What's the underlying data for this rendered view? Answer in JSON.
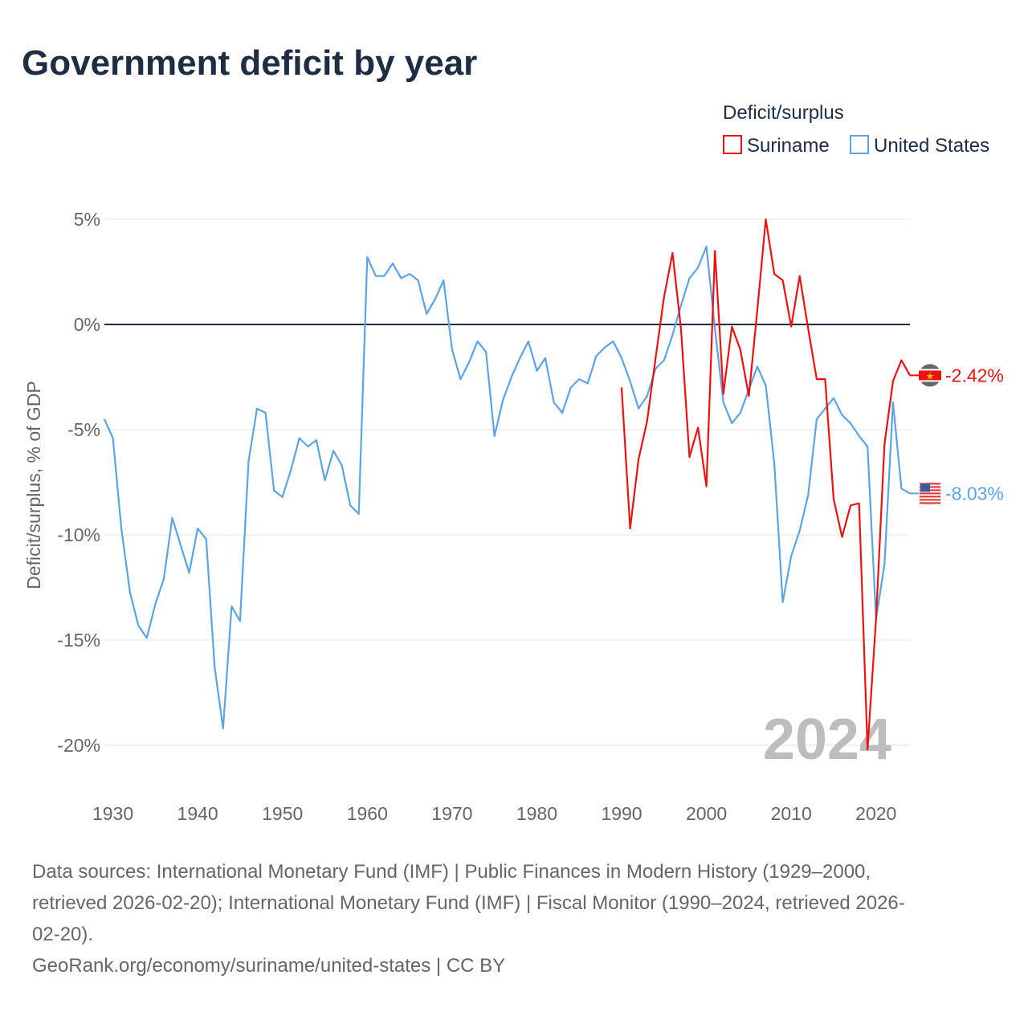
{
  "chart_data": {
    "type": "line",
    "title": "Government deficit by year",
    "xlabel": "",
    "ylabel": "Deficit/surplus, % of GDP",
    "xlim": [
      1929,
      2024
    ],
    "ylim": [
      -20,
      5
    ],
    "x_ticks": [
      1930,
      1940,
      1950,
      1960,
      1970,
      1980,
      1990,
      2000,
      2010,
      2020
    ],
    "y_ticks": [
      5,
      0,
      -5,
      -10,
      -15,
      -20
    ],
    "y_tick_labels": [
      "5%",
      "0%",
      "-5%",
      "-10%",
      "-15%",
      "-20%"
    ],
    "x_tick_labels": [
      "1930",
      "1940",
      "1950",
      "1960",
      "1970",
      "1980",
      "1990",
      "2000",
      "2010",
      "2020"
    ],
    "grid": true,
    "legend_title": "Deficit/surplus",
    "legend_placement": "top-right",
    "year_watermark": "2024",
    "series": [
      {
        "name": "Suriname",
        "color": "#ee1111",
        "start_year": 1990,
        "end_label": "-2.42%",
        "values": [
          -3.0,
          -9.7,
          -6.4,
          -4.6,
          -1.6,
          1.3,
          3.4,
          -0.2,
          -6.3,
          -4.9,
          -7.7,
          3.5,
          -3.3,
          -0.1,
          -1.2,
          -3.4,
          0.7,
          5.0,
          2.4,
          2.1,
          -0.1,
          2.3,
          -0.2,
          -2.6,
          -2.6,
          -8.3,
          -10.1,
          -8.6,
          -8.5,
          -20.2,
          -14.0,
          -5.7,
          -2.7,
          -1.7,
          -2.42
        ]
      },
      {
        "name": "United States",
        "color": "#5ba4e8",
        "start_year": 1929,
        "end_label": "-8.03%",
        "values": [
          -4.5,
          -5.4,
          -9.7,
          -12.7,
          -14.3,
          -14.9,
          -13.3,
          -12.1,
          -9.2,
          -10.5,
          -11.8,
          -9.7,
          -10.2,
          -16.3,
          -19.2,
          -13.4,
          -14.1,
          -6.5,
          -4.0,
          -4.2,
          -7.9,
          -8.2,
          -6.9,
          -5.4,
          -5.8,
          -5.5,
          -7.4,
          -6.0,
          -6.7,
          -8.6,
          -9.0,
          3.2,
          2.3,
          2.3,
          2.9,
          2.2,
          2.4,
          2.1,
          0.5,
          1.2,
          2.1,
          -1.2,
          -2.6,
          -1.8,
          -0.8,
          -1.3,
          -5.3,
          -3.6,
          -2.5,
          -1.6,
          -0.8,
          -2.2,
          -1.6,
          -3.7,
          -4.2,
          -3.0,
          -2.6,
          -2.8,
          -1.5,
          -1.1,
          -0.8,
          -1.6,
          -2.7,
          -4.0,
          -3.4,
          -2.1,
          -1.7,
          -0.5,
          0.9,
          2.2,
          2.7,
          3.7,
          -0.2,
          -3.7,
          -4.7,
          -4.2,
          -3.1,
          -2.0,
          -2.9,
          -6.6,
          -13.2,
          -11.0,
          -9.8,
          -8.1,
          -4.5,
          -4.0,
          -3.5,
          -4.3,
          -4.7,
          -5.3,
          -5.8,
          -14.0,
          -11.4,
          -3.7,
          -7.8,
          -8.03
        ]
      }
    ]
  },
  "footer": {
    "line1": "Data sources: International Monetary Fund (IMF) | Public Finances in Modern History (1929–2000,",
    "line2": "retrieved 2026-02-20); International Monetary Fund (IMF) | Fiscal Monitor (1990–2024, retrieved 2026-",
    "line3": "02-20).",
    "line4": "GeoRank.org/economy/suriname/united-states | CC BY"
  }
}
